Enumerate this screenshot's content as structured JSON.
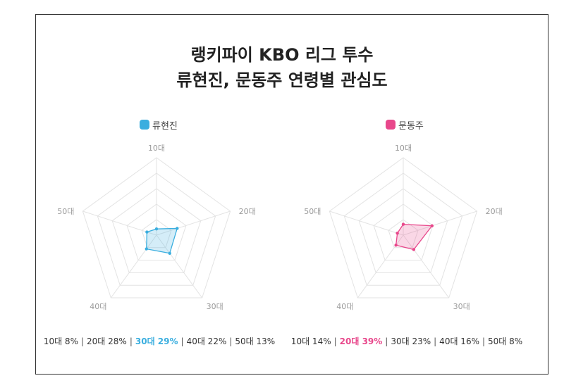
{
  "title": {
    "line1": "랭키파이 KBO 리그 투수",
    "line2": "류현진, 문동주 연령별 관심도"
  },
  "chart_data": [
    {
      "type": "radar",
      "series_name": "류현진",
      "color": "#3aaedf",
      "categories": [
        "10대",
        "20대",
        "30대",
        "40대",
        "50대"
      ],
      "values": [
        8,
        28,
        29,
        22,
        13
      ],
      "rmax": 100,
      "rings": 5,
      "highlight_index": 2,
      "summary": [
        "10대 8%",
        "20대 28%",
        "30대 29%",
        "40대 22%",
        "50대 13%"
      ]
    },
    {
      "type": "radar",
      "series_name": "문동주",
      "color": "#e8478b",
      "categories": [
        "10대",
        "20대",
        "30대",
        "40대",
        "50대"
      ],
      "values": [
        14,
        39,
        23,
        16,
        8
      ],
      "rmax": 100,
      "rings": 5,
      "highlight_index": 1,
      "summary": [
        "10대 14%",
        "20대 39%",
        "30대 23%",
        "40대 16%",
        "50대 8%"
      ]
    }
  ]
}
